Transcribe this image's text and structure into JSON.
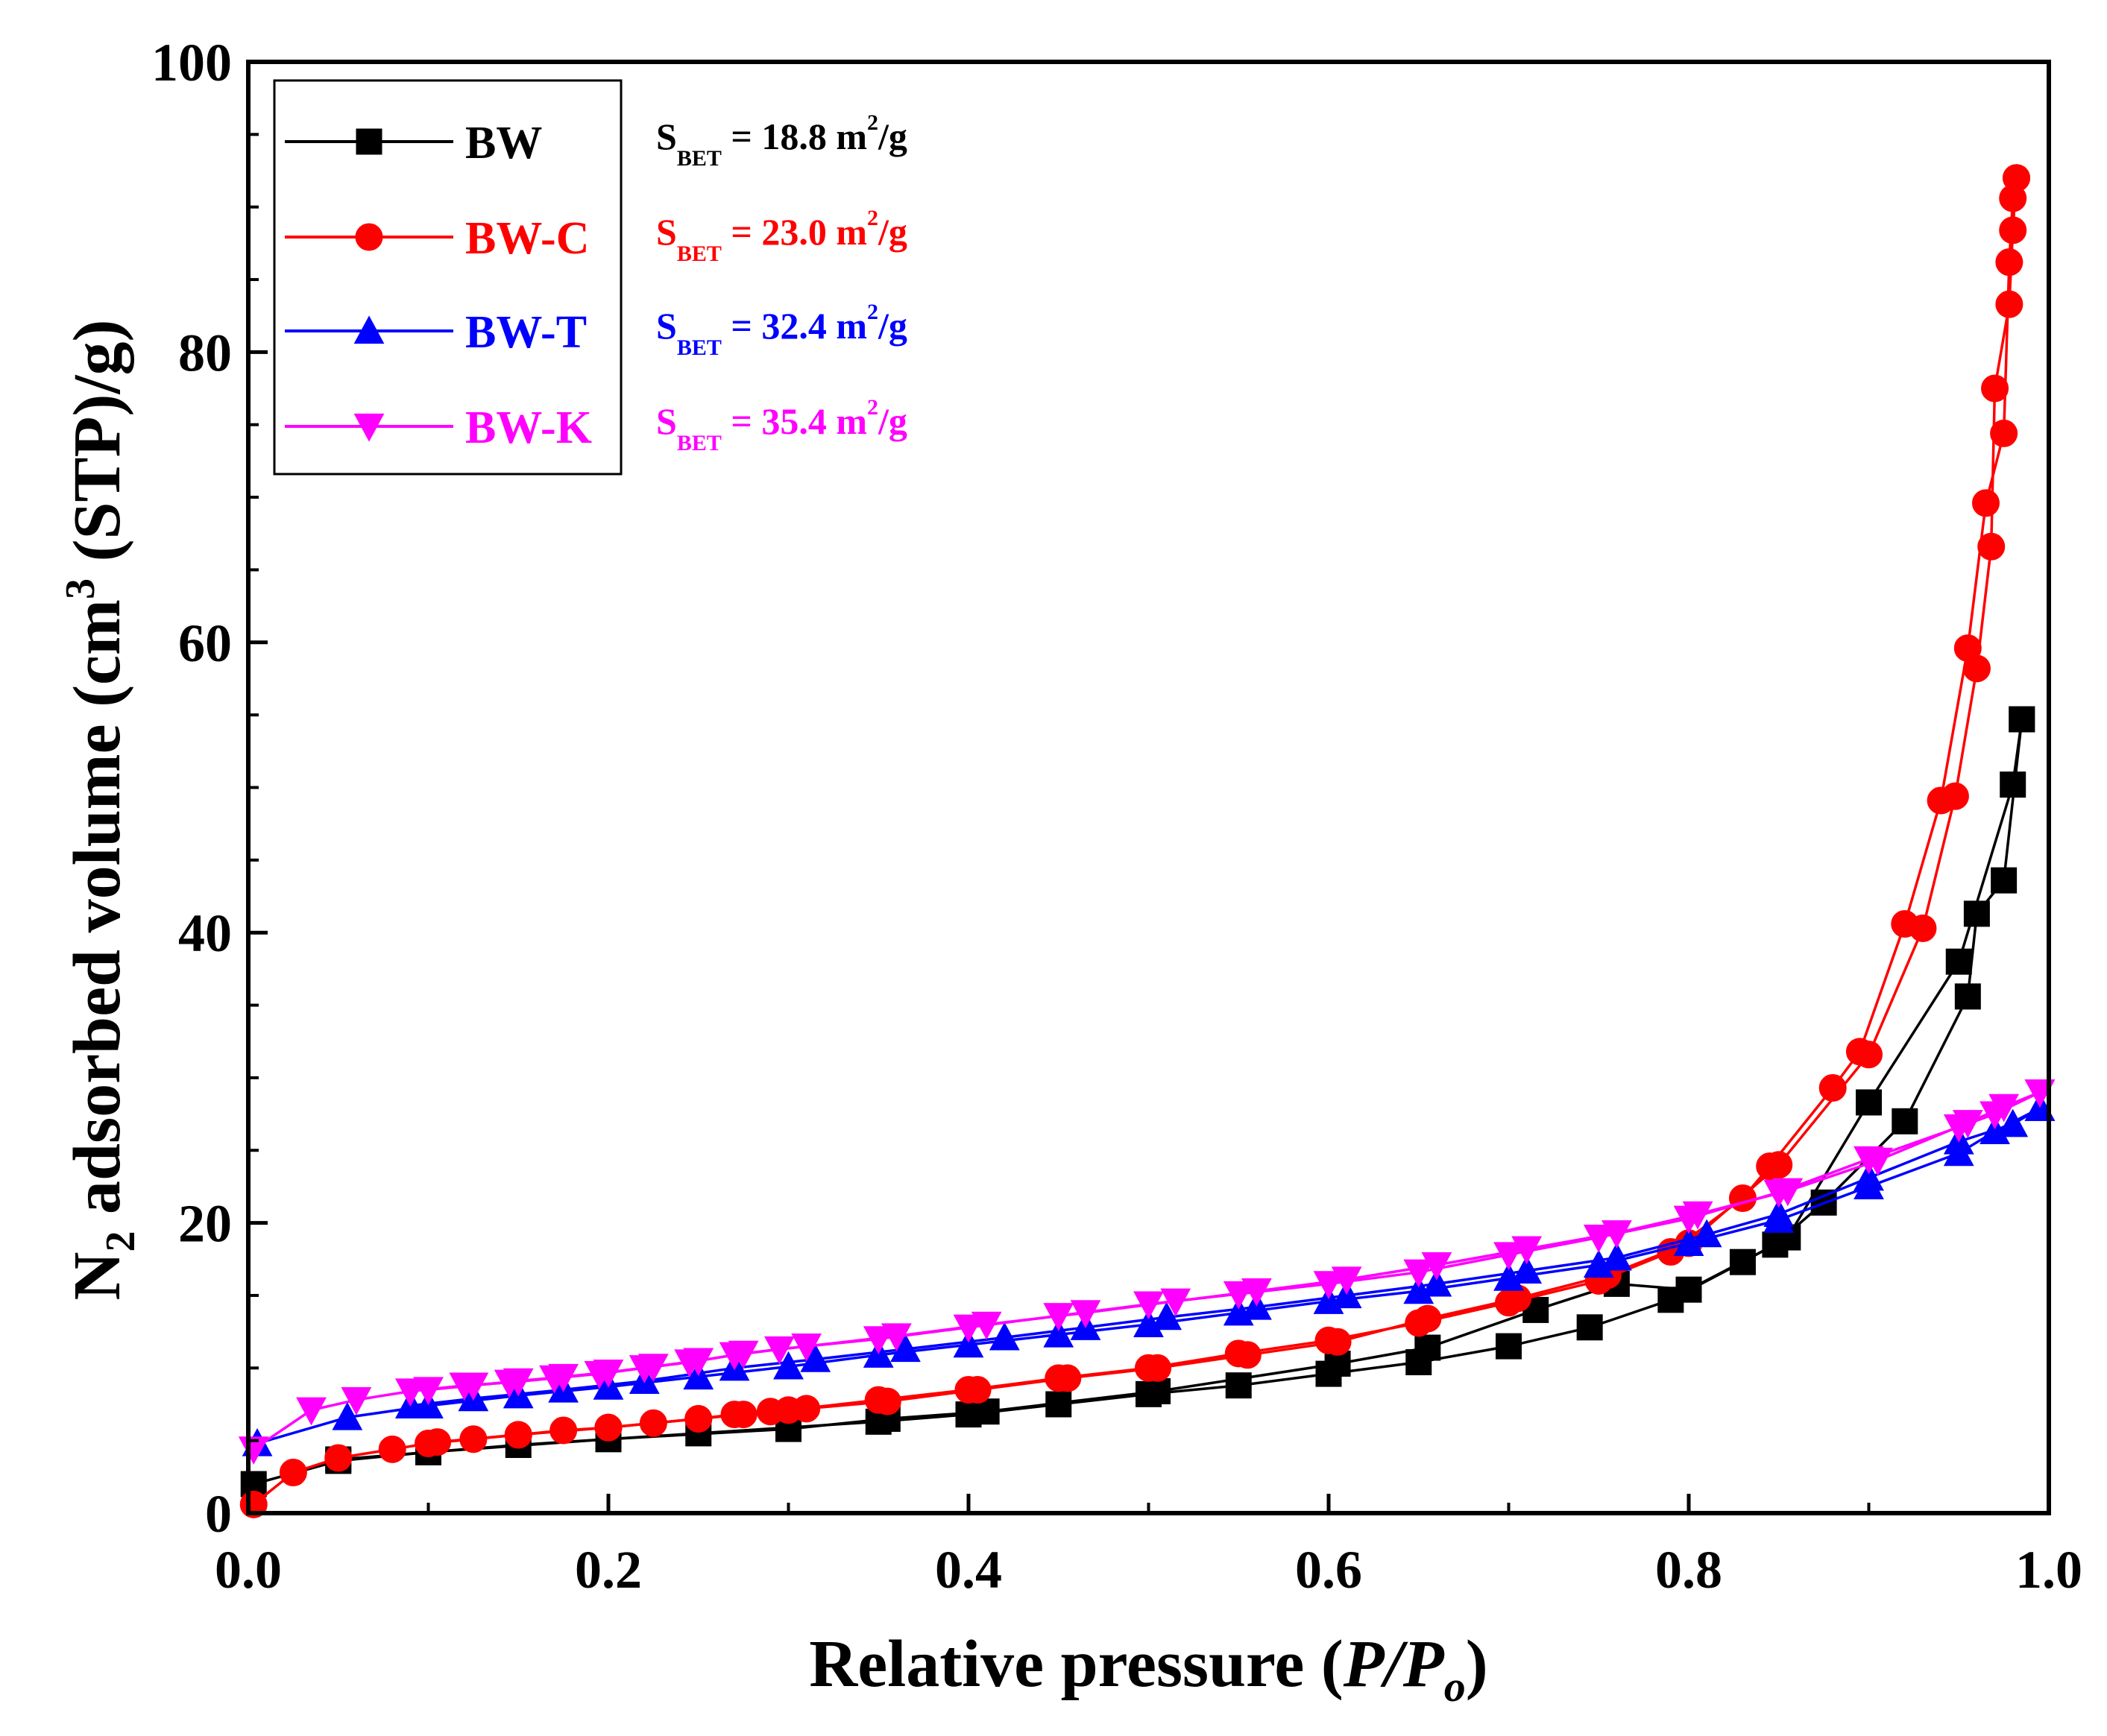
{
  "chart_data": {
    "type": "scatter",
    "title": "",
    "xlabel_main": "Relative pressure (",
    "xlabel_italic": "P/P",
    "xlabel_sub": "o",
    "xlabel_close": ")",
    "ylabel_prefix": "N",
    "ylabel_sub": "2",
    "ylabel_mid": " adsorbed volume (cm",
    "ylabel_sup": "3",
    "ylabel_suffix": " (STP)/g)",
    "xlim": [
      0.0,
      1.0
    ],
    "ylim": [
      0,
      100
    ],
    "xticks": [
      "0.0",
      "0.2",
      "0.4",
      "0.6",
      "0.8",
      "1.0"
    ],
    "yticks": [
      "0",
      "20",
      "40",
      "60",
      "80",
      "100"
    ],
    "legend_position": "top-left",
    "series": [
      {
        "name": "BW",
        "color": "#000000",
        "marker": "square",
        "sbet_prefix": "S",
        "sbet_sub": "BET",
        "sbet_value": " = 18.8 m",
        "sbet_sup": "2",
        "sbet_unit": "/g",
        "adsorption": [
          [
            0.003,
            2.0
          ],
          [
            0.05,
            3.6
          ],
          [
            0.1,
            4.2
          ],
          [
            0.15,
            4.7
          ],
          [
            0.2,
            5.1
          ],
          [
            0.25,
            5.5
          ],
          [
            0.3,
            5.9
          ],
          [
            0.35,
            6.3
          ],
          [
            0.4,
            6.8
          ],
          [
            0.45,
            7.5
          ],
          [
            0.5,
            8.2
          ],
          [
            0.55,
            8.8
          ],
          [
            0.6,
            9.6
          ],
          [
            0.65,
            10.4
          ],
          [
            0.7,
            11.5
          ],
          [
            0.745,
            12.8
          ],
          [
            0.79,
            14.7
          ],
          [
            0.83,
            17.3
          ],
          [
            0.855,
            19.0
          ],
          [
            0.9,
            28.3
          ],
          [
            0.95,
            38.0
          ],
          [
            0.98,
            50.2
          ],
          [
            0.985,
            54.7
          ]
        ],
        "desorption": [
          [
            0.985,
            54.7
          ],
          [
            0.975,
            43.6
          ],
          [
            0.96,
            41.3
          ],
          [
            0.955,
            35.6
          ],
          [
            0.92,
            27.0
          ],
          [
            0.875,
            21.4
          ],
          [
            0.848,
            18.5
          ],
          [
            0.8,
            15.4
          ],
          [
            0.76,
            15.8
          ],
          [
            0.715,
            14.0
          ],
          [
            0.655,
            11.4
          ],
          [
            0.605,
            10.3
          ],
          [
            0.505,
            8.4
          ],
          [
            0.41,
            7.0
          ],
          [
            0.355,
            6.5
          ],
          [
            0.3,
            5.8
          ],
          [
            0.2,
            5.1
          ],
          [
            0.1,
            4.2
          ],
          [
            0.05,
            3.7
          ]
        ]
      },
      {
        "name": "BW-C",
        "color": "#ff0000",
        "marker": "circle",
        "sbet_prefix": "S",
        "sbet_sub": "BET",
        "sbet_value": " = 23.0 m",
        "sbet_sup": "2",
        "sbet_unit": "/g",
        "adsorption": [
          [
            0.003,
            0.6
          ],
          [
            0.025,
            2.8
          ],
          [
            0.05,
            3.8
          ],
          [
            0.08,
            4.4
          ],
          [
            0.1,
            4.8
          ],
          [
            0.125,
            5.1
          ],
          [
            0.15,
            5.4
          ],
          [
            0.175,
            5.7
          ],
          [
            0.2,
            5.9
          ],
          [
            0.225,
            6.2
          ],
          [
            0.25,
            6.5
          ],
          [
            0.275,
            6.8
          ],
          [
            0.3,
            7.1
          ],
          [
            0.35,
            7.8
          ],
          [
            0.4,
            8.5
          ],
          [
            0.45,
            9.3
          ],
          [
            0.5,
            10.0
          ],
          [
            0.55,
            11.0
          ],
          [
            0.6,
            11.9
          ],
          [
            0.65,
            13.1
          ],
          [
            0.7,
            14.5
          ],
          [
            0.75,
            16.0
          ],
          [
            0.79,
            18.0
          ],
          [
            0.83,
            21.7
          ],
          [
            0.845,
            23.9
          ],
          [
            0.88,
            29.3
          ],
          [
            0.895,
            31.8
          ],
          [
            0.92,
            40.6
          ],
          [
            0.94,
            49.1
          ],
          [
            0.955,
            59.6
          ],
          [
            0.965,
            69.6
          ],
          [
            0.975,
            74.4
          ],
          [
            0.978,
            86.2
          ],
          [
            0.98,
            90.6
          ],
          [
            0.982,
            92.0
          ]
        ],
        "desorption": [
          [
            0.982,
            92.0
          ],
          [
            0.98,
            88.4
          ],
          [
            0.978,
            83.3
          ],
          [
            0.97,
            77.5
          ],
          [
            0.968,
            66.6
          ],
          [
            0.96,
            58.2
          ],
          [
            0.948,
            49.4
          ],
          [
            0.93,
            40.3
          ],
          [
            0.9,
            31.6
          ],
          [
            0.85,
            24.0
          ],
          [
            0.8,
            18.6
          ],
          [
            0.755,
            16.4
          ],
          [
            0.705,
            14.8
          ],
          [
            0.655,
            13.4
          ],
          [
            0.605,
            11.8
          ],
          [
            0.555,
            10.9
          ],
          [
            0.505,
            10.0
          ],
          [
            0.455,
            9.3
          ],
          [
            0.405,
            8.5
          ],
          [
            0.355,
            7.7
          ],
          [
            0.31,
            7.2
          ],
          [
            0.29,
            7.0
          ],
          [
            0.27,
            6.8
          ],
          [
            0.25,
            6.5
          ],
          [
            0.2,
            5.9
          ],
          [
            0.15,
            5.4
          ],
          [
            0.105,
            4.9
          ]
        ]
      },
      {
        "name": "BW-T",
        "color": "#0000ff",
        "marker": "triangle-up",
        "sbet_prefix": "S",
        "sbet_sub": "BET",
        "sbet_value": " = 32.4 m",
        "sbet_sup": "2",
        "sbet_unit": "/g",
        "adsorption": [
          [
            0.005,
            4.8
          ],
          [
            0.055,
            6.6
          ],
          [
            0.1,
            7.4
          ],
          [
            0.15,
            8.1
          ],
          [
            0.2,
            8.7
          ],
          [
            0.25,
            9.4
          ],
          [
            0.3,
            10.1
          ],
          [
            0.35,
            10.9
          ],
          [
            0.4,
            11.6
          ],
          [
            0.45,
            12.3
          ],
          [
            0.5,
            13.0
          ],
          [
            0.55,
            13.8
          ],
          [
            0.6,
            14.6
          ],
          [
            0.65,
            15.3
          ],
          [
            0.7,
            16.2
          ],
          [
            0.75,
            17.1
          ],
          [
            0.8,
            18.6
          ],
          [
            0.85,
            20.2
          ],
          [
            0.9,
            22.5
          ],
          [
            0.95,
            24.8
          ],
          [
            0.97,
            26.3
          ],
          [
            0.995,
            27.9
          ]
        ],
        "desorption": [
          [
            0.995,
            27.9
          ],
          [
            0.98,
            26.8
          ],
          [
            0.95,
            25.6
          ],
          [
            0.9,
            23.1
          ],
          [
            0.85,
            20.6
          ],
          [
            0.81,
            19.2
          ],
          [
            0.76,
            17.6
          ],
          [
            0.71,
            16.7
          ],
          [
            0.66,
            15.8
          ],
          [
            0.61,
            15.0
          ],
          [
            0.56,
            14.2
          ],
          [
            0.51,
            13.5
          ],
          [
            0.465,
            12.8
          ],
          [
            0.42,
            12.1
          ],
          [
            0.365,
            11.3
          ],
          [
            0.315,
            10.6
          ],
          [
            0.27,
            10.0
          ],
          [
            0.22,
            9.1
          ],
          [
            0.175,
            8.5
          ],
          [
            0.125,
            7.9
          ],
          [
            0.09,
            7.4
          ]
        ]
      },
      {
        "name": "BW-K",
        "color": "#ff00ff",
        "marker": "triangle-down",
        "sbet_prefix": "S",
        "sbet_sub": "BET",
        "sbet_value": " = 35.4 m",
        "sbet_sup": "2",
        "sbet_unit": "/g",
        "adsorption": [
          [
            0.003,
            4.4
          ],
          [
            0.035,
            7.1
          ],
          [
            0.06,
            7.8
          ],
          [
            0.09,
            8.4
          ],
          [
            0.12,
            8.8
          ],
          [
            0.145,
            9.0
          ],
          [
            0.17,
            9.3
          ],
          [
            0.195,
            9.6
          ],
          [
            0.22,
            10.0
          ],
          [
            0.245,
            10.4
          ],
          [
            0.27,
            10.9
          ],
          [
            0.295,
            11.3
          ],
          [
            0.35,
            12.0
          ],
          [
            0.4,
            12.8
          ],
          [
            0.45,
            13.6
          ],
          [
            0.5,
            14.4
          ],
          [
            0.55,
            15.1
          ],
          [
            0.6,
            15.8
          ],
          [
            0.65,
            16.6
          ],
          [
            0.7,
            17.8
          ],
          [
            0.75,
            19.0
          ],
          [
            0.8,
            20.3
          ],
          [
            0.85,
            22.1
          ],
          [
            0.9,
            24.4
          ],
          [
            0.95,
            26.6
          ],
          [
            0.97,
            27.5
          ],
          [
            0.995,
            29.0
          ]
        ],
        "desorption": [
          [
            0.995,
            29.0
          ],
          [
            0.975,
            28.0
          ],
          [
            0.955,
            26.9
          ],
          [
            0.905,
            24.3
          ],
          [
            0.855,
            22.2
          ],
          [
            0.805,
            20.6
          ],
          [
            0.76,
            19.3
          ],
          [
            0.71,
            18.2
          ],
          [
            0.66,
            17.1
          ],
          [
            0.61,
            16.1
          ],
          [
            0.56,
            15.3
          ],
          [
            0.515,
            14.6
          ],
          [
            0.465,
            13.8
          ],
          [
            0.41,
            13.0
          ],
          [
            0.36,
            12.2
          ],
          [
            0.31,
            11.5
          ],
          [
            0.275,
            11.0
          ],
          [
            0.25,
            10.5
          ],
          [
            0.225,
            10.1
          ],
          [
            0.2,
            9.7
          ],
          [
            0.175,
            9.4
          ],
          [
            0.15,
            9.1
          ],
          [
            0.125,
            8.8
          ],
          [
            0.1,
            8.5
          ]
        ]
      }
    ]
  }
}
